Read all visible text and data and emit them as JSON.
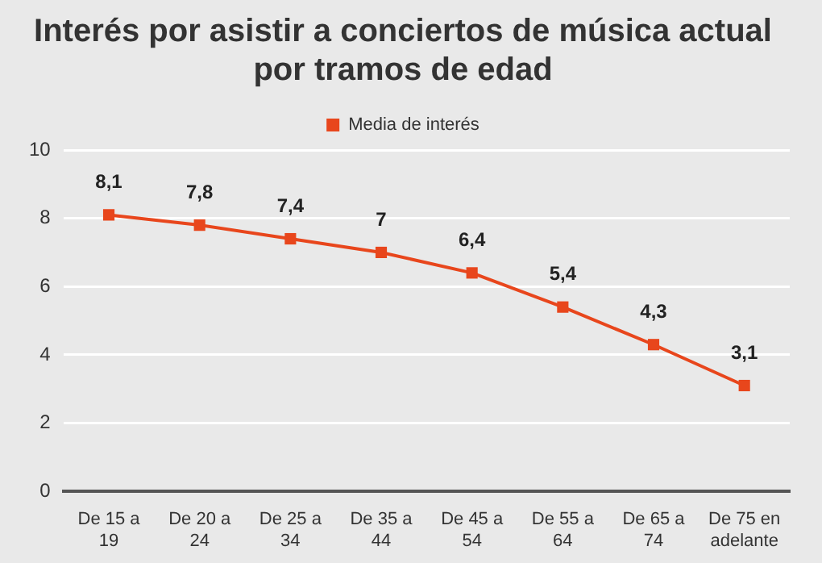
{
  "chart_data": {
    "type": "line",
    "title": "Interés por asistir a conciertos de música actual por tramos de edad",
    "categories": [
      "De 15 a 19",
      "De 20 a 24",
      "De 25 a 34",
      "De 35 a 44",
      "De 45 a 54",
      "De 55 a 64",
      "De 65 a 74",
      "De 75 en adelante"
    ],
    "series": [
      {
        "name": "Media de interés",
        "color": "#e8461c",
        "values": [
          8.1,
          7.8,
          7.4,
          7,
          6.4,
          5.4,
          4.3,
          3.1
        ],
        "value_labels": [
          "8,1",
          "7,8",
          "7,4",
          "7",
          "6,4",
          "5,4",
          "4,3",
          "3,1"
        ]
      }
    ],
    "ylim": [
      0,
      10
    ],
    "yticks": [
      0,
      2,
      4,
      6,
      8,
      10
    ],
    "grid": "y",
    "legend": "top",
    "marker": "square",
    "line_style": "solid"
  }
}
